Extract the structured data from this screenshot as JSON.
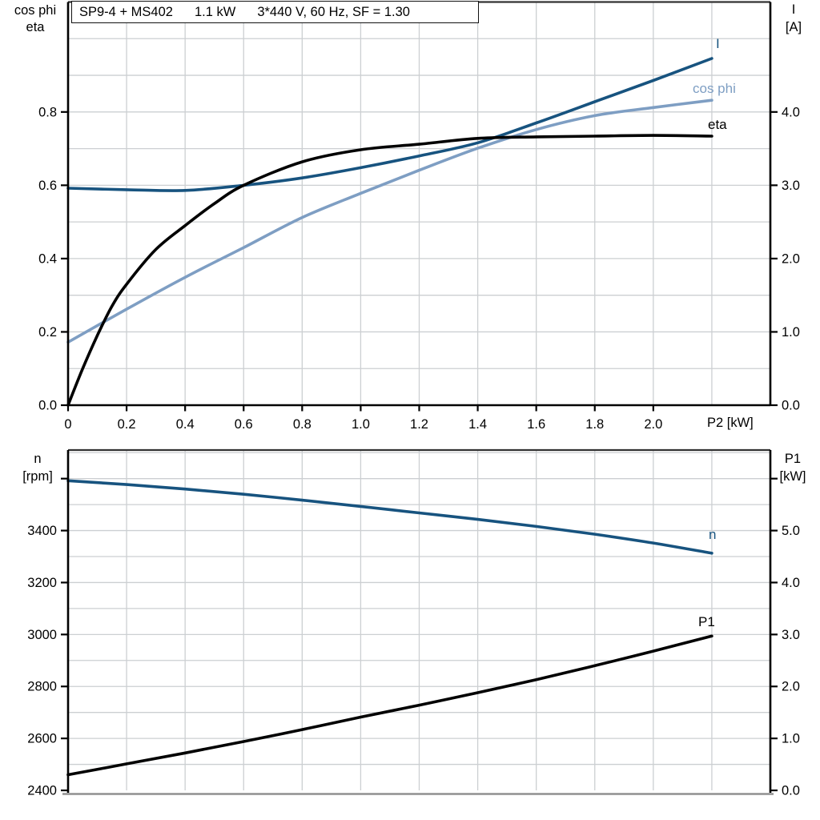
{
  "colors": {
    "curve_dark_blue": "#17537f",
    "curve_light_blue": "#7e9ec3",
    "curve_black": "#000000",
    "grid": "#cccfd2",
    "axis": "#000000",
    "frame_top": "#333333",
    "bottom_baseline": "#909090",
    "title_border": "#111111"
  },
  "chart_data": [
    {
      "type": "line",
      "title": "SP9-4 + MS402   1.1 kW   3*440 V, 60 Hz, SF = 1.30",
      "title_parts": [
        "SP9-4 + MS402",
        "1.1 kW",
        "3*440 V, 60 Hz, SF = 1.30"
      ],
      "xlabel": "P2 [kW]",
      "x_range": [
        0,
        2.4
      ],
      "x_grid_step": 0.2,
      "grid": true,
      "legend_position": "curve-end-labels",
      "x_ticks": [
        {
          "v": 0,
          "label": "0"
        },
        {
          "v": 0.2,
          "label": "0.2"
        },
        {
          "v": 0.4,
          "label": "0.4"
        },
        {
          "v": 0.6,
          "label": "0.6"
        },
        {
          "v": 0.8,
          "label": "0.8"
        },
        {
          "v": 1.0,
          "label": "1.0"
        },
        {
          "v": 1.2,
          "label": "1.2"
        },
        {
          "v": 1.4,
          "label": "1.4"
        },
        {
          "v": 1.6,
          "label": "1.6"
        },
        {
          "v": 1.8,
          "label": "1.8"
        },
        {
          "v": 2.0,
          "label": "2.0"
        }
      ],
      "left_axis": {
        "title_lines": [
          "cos phi",
          "eta"
        ],
        "range": [
          0,
          1.1
        ],
        "grid_step": 0.1,
        "ticks": [
          {
            "v": 0.0,
            "label": "0.0"
          },
          {
            "v": 0.2,
            "label": "0.2"
          },
          {
            "v": 0.4,
            "label": "0.4"
          },
          {
            "v": 0.6,
            "label": "0.6"
          },
          {
            "v": 0.8,
            "label": "0.8"
          }
        ]
      },
      "right_axis": {
        "title_lines": [
          "I",
          "[A]"
        ],
        "range": [
          0,
          5.5
        ],
        "ticks": [
          {
            "v": 0.0,
            "label": "0.0"
          },
          {
            "v": 1.0,
            "label": "1.0"
          },
          {
            "v": 2.0,
            "label": "2.0"
          },
          {
            "v": 3.0,
            "label": "3.0"
          },
          {
            "v": 4.0,
            "label": "4.0"
          }
        ]
      },
      "series": [
        {
          "name": "I",
          "axis": "right",
          "unit": "A",
          "color": "curve_dark_blue",
          "x": [
            0,
            0.2,
            0.4,
            0.6,
            0.8,
            1.0,
            1.2,
            1.4,
            1.6,
            1.8,
            2.0,
            2.2
          ],
          "values": [
            2.96,
            2.94,
            2.93,
            3.0,
            3.1,
            3.24,
            3.4,
            3.58,
            3.85,
            4.14,
            4.43,
            4.73
          ]
        },
        {
          "name": "cos phi",
          "axis": "left",
          "unit": "",
          "color": "curve_light_blue",
          "x": [
            0,
            0.2,
            0.4,
            0.6,
            0.8,
            1.0,
            1.2,
            1.4,
            1.6,
            1.8,
            2.0,
            2.2
          ],
          "values": [
            0.172,
            0.262,
            0.349,
            0.43,
            0.512,
            0.578,
            0.641,
            0.701,
            0.752,
            0.79,
            0.812,
            0.832
          ]
        },
        {
          "name": "eta",
          "axis": "left",
          "unit": "",
          "color": "curve_black",
          "x": [
            0,
            0.05,
            0.1,
            0.15,
            0.2,
            0.3,
            0.4,
            0.5,
            0.6,
            0.8,
            1.0,
            1.2,
            1.4,
            1.6,
            1.8,
            2.0,
            2.2
          ],
          "values": [
            0,
            0.1,
            0.19,
            0.27,
            0.33,
            0.425,
            0.49,
            0.55,
            0.6,
            0.664,
            0.697,
            0.712,
            0.728,
            0.732,
            0.734,
            0.736,
            0.734
          ]
        }
      ]
    },
    {
      "type": "line",
      "title": "",
      "xlabel": "",
      "x_range": [
        0,
        2.4
      ],
      "x_grid_step": 0.2,
      "grid": true,
      "legend_position": "curve-end-labels",
      "left_axis": {
        "title_lines": [
          "n",
          "[rpm]"
        ],
        "range": [
          2400,
          3710
        ],
        "grid_step": 100,
        "ticks": [
          {
            "v": 2400,
            "label": "2400"
          },
          {
            "v": 2600,
            "label": "2600"
          },
          {
            "v": 2800,
            "label": "2800"
          },
          {
            "v": 3000,
            "label": "3000"
          },
          {
            "v": 3200,
            "label": "3200"
          },
          {
            "v": 3400,
            "label": "3400"
          },
          {
            "v": 3600,
            "label": ""
          }
        ]
      },
      "right_axis": {
        "title_lines": [
          "P1",
          "[kW]"
        ],
        "range": [
          0,
          6.55
        ],
        "ticks": [
          {
            "v": 0.0,
            "label": "0.0"
          },
          {
            "v": 1.0,
            "label": "1.0"
          },
          {
            "v": 2.0,
            "label": "2.0"
          },
          {
            "v": 3.0,
            "label": "3.0"
          },
          {
            "v": 4.0,
            "label": "4.0"
          },
          {
            "v": 5.0,
            "label": "5.0"
          },
          {
            "v": 6.0,
            "label": ""
          }
        ]
      },
      "series": [
        {
          "name": "n",
          "axis": "left",
          "unit": "rpm",
          "color": "curve_dark_blue",
          "x": [
            0,
            0.2,
            0.4,
            0.6,
            0.8,
            1.0,
            1.2,
            1.4,
            1.6,
            1.8,
            2.0,
            2.2
          ],
          "values": [
            3592,
            3577,
            3560,
            3540,
            3517,
            3493,
            3468,
            3443,
            3416,
            3386,
            3352,
            3313
          ]
        },
        {
          "name": "P1",
          "axis": "right",
          "unit": "kW",
          "color": "curve_black",
          "x": [
            0,
            0.2,
            0.4,
            0.6,
            0.8,
            1.0,
            1.2,
            1.4,
            1.6,
            1.8,
            2.0,
            2.2
          ],
          "values": [
            0.3,
            0.51,
            0.72,
            0.94,
            1.17,
            1.41,
            1.64,
            1.88,
            2.13,
            2.4,
            2.68,
            2.97
          ]
        }
      ]
    }
  ]
}
